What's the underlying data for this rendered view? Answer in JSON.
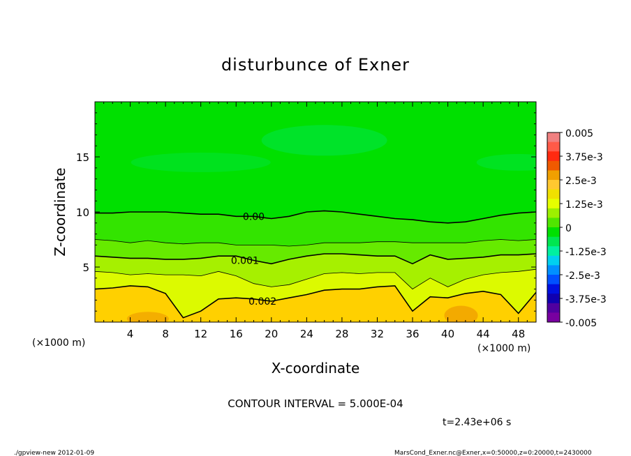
{
  "chart_data": {
    "type": "heatmap",
    "title": "disturbunce of Exner",
    "xlabel": "X-coordinate",
    "ylabel": "Z-coordinate",
    "x_unit_label": "(×1000 m)",
    "y_unit_label": "(×1000 m)",
    "xlim": [
      0,
      50
    ],
    "ylim": [
      0,
      20
    ],
    "x_ticks": [
      4,
      8,
      12,
      16,
      20,
      24,
      28,
      32,
      36,
      40,
      44,
      48
    ],
    "y_ticks": [
      5,
      10,
      15
    ],
    "x_tick_labels": [
      "4",
      "8",
      "12",
      "16",
      "20",
      "24",
      "28",
      "32",
      "36",
      "40",
      "44",
      "48"
    ],
    "y_tick_labels": [
      "5",
      "10",
      "15"
    ],
    "colorbar": {
      "range": [
        -0.005,
        0.005
      ],
      "labels": [
        "0.005",
        "3.75e-3",
        "2.5e-3",
        "1.25e-3",
        "0",
        "-1.25e-3",
        "-2.5e-3",
        "-3.75e-3",
        "-0.005"
      ],
      "colors": [
        "#f08080",
        "#ff5a48",
        "#ff2a10",
        "#f05a00",
        "#f0a000",
        "#ffc830",
        "#f0e000",
        "#e6ff00",
        "#9cf000",
        "#50e600",
        "#00e000",
        "#00e650",
        "#00f0a0",
        "#00d0f0",
        "#0090ff",
        "#0050ff",
        "#0010e0",
        "#1000b0",
        "#5000a0",
        "#7800a0"
      ]
    },
    "contours": [
      {
        "level": 0.0,
        "label": "0.00",
        "z": [
          9.9,
          9.9,
          10.0,
          10.0,
          10.0,
          9.9,
          9.8,
          9.8,
          9.6,
          9.6,
          9.4,
          9.6,
          10.0,
          10.1,
          10.0,
          9.8,
          9.6,
          9.4,
          9.3,
          9.1,
          9.0,
          9.1,
          9.4,
          9.7,
          9.9,
          10.0
        ]
      },
      {
        "level": 0.0005,
        "label": "",
        "z": [
          7.5,
          7.4,
          7.2,
          7.4,
          7.2,
          7.1,
          7.2,
          7.2,
          7.0,
          7.0,
          7.0,
          6.9,
          7.0,
          7.2,
          7.2,
          7.2,
          7.3,
          7.3,
          7.2,
          7.2,
          7.2,
          7.2,
          7.4,
          7.5,
          7.4,
          7.5
        ]
      },
      {
        "level": 0.001,
        "label": "0.001",
        "z": [
          6.0,
          5.9,
          5.8,
          5.8,
          5.7,
          5.7,
          5.8,
          6.0,
          6.0,
          5.6,
          5.3,
          5.7,
          6.0,
          6.2,
          6.2,
          6.1,
          6.0,
          6.0,
          5.3,
          6.1,
          5.7,
          5.8,
          5.9,
          6.1,
          6.1,
          6.2
        ]
      },
      {
        "level": 0.0015,
        "label": "",
        "z": [
          4.6,
          4.5,
          4.3,
          4.4,
          4.3,
          4.3,
          4.2,
          4.6,
          4.2,
          3.5,
          3.2,
          3.4,
          3.9,
          4.4,
          4.5,
          4.4,
          4.5,
          4.5,
          3.0,
          4.0,
          3.2,
          3.9,
          4.3,
          4.5,
          4.6,
          4.8
        ]
      },
      {
        "level": 0.002,
        "label": "0.002",
        "z": [
          3.0,
          3.1,
          3.3,
          3.2,
          2.6,
          0.4,
          1.0,
          2.1,
          2.2,
          2.1,
          1.9,
          2.2,
          2.5,
          2.9,
          3.0,
          3.0,
          3.2,
          3.3,
          1.0,
          2.3,
          2.2,
          2.6,
          2.8,
          2.5,
          0.8,
          2.7
        ]
      }
    ],
    "grid": false
  },
  "footer": {
    "contour_interval": "CONTOUR INTERVAL = 5.000E-04",
    "time": "t=2.43e+06 s",
    "program": "./gpview-new  2012-01-09",
    "source": "MarsCond_Exner.nc@Exner,x=0:50000,z=0:20000,t=2430000"
  }
}
